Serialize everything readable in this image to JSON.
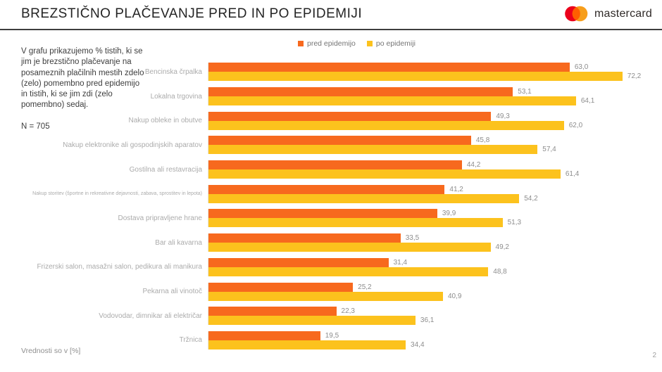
{
  "page": {
    "title": "BREZSTIČNO PLAČEVANJE PRED IN PO EPIDEMIJI",
    "footnote": "Vrednosti so v [%]",
    "page_number": "2"
  },
  "logo": {
    "brand": "mastercard",
    "colors": {
      "left_circle": "#EB001B",
      "right_circle": "#F79E1B",
      "overlap": "#FF5F00"
    }
  },
  "description": {
    "text": "V grafu prikazujemo % tistih, ki se jim je brezstično plačevanje na posameznih plačilnih mestih zdelo (zelo) pomembno pred epidemijo in tistih, ki se jim zdi (zelo pomembno) sedaj.",
    "sample_size": "N = 705"
  },
  "chart_data": {
    "type": "bar",
    "orientation": "horizontal",
    "legend_position": "top",
    "grid": false,
    "xlim": [
      0,
      78
    ],
    "value_format": "one decimal, comma separator, values in %",
    "categories": [
      "Bencinska črpalka",
      "Lokalna trgovina",
      "Nakup obleke in obutve",
      "Nakup elektronike ali gospodinjskih aparatov",
      "Gostilna ali restavracija",
      "Nakup storitev (športne in rekreativne dejavnosti, zabava, sprostitev in lepota)",
      "Dostava pripravljene hrane",
      "Bar ali kavarna",
      "Frizerski salon, masažni salon, pedikura ali manikura",
      "Pekarna ali vinotoč",
      "Vodovodar, dimnikar ali električar",
      "Tržnica"
    ],
    "series": [
      {
        "name": "pred epidemijo",
        "color": "#F7691E",
        "values": [
          63.0,
          53.1,
          49.3,
          45.8,
          44.2,
          41.2,
          39.9,
          33.5,
          31.4,
          25.2,
          22.3,
          19.5
        ]
      },
      {
        "name": "po epidemiji",
        "color": "#FCC21D",
        "values": [
          72.2,
          64.1,
          62.0,
          57.4,
          61.4,
          54.2,
          51.3,
          49.2,
          48.8,
          40.9,
          36.1,
          34.4
        ]
      }
    ]
  }
}
